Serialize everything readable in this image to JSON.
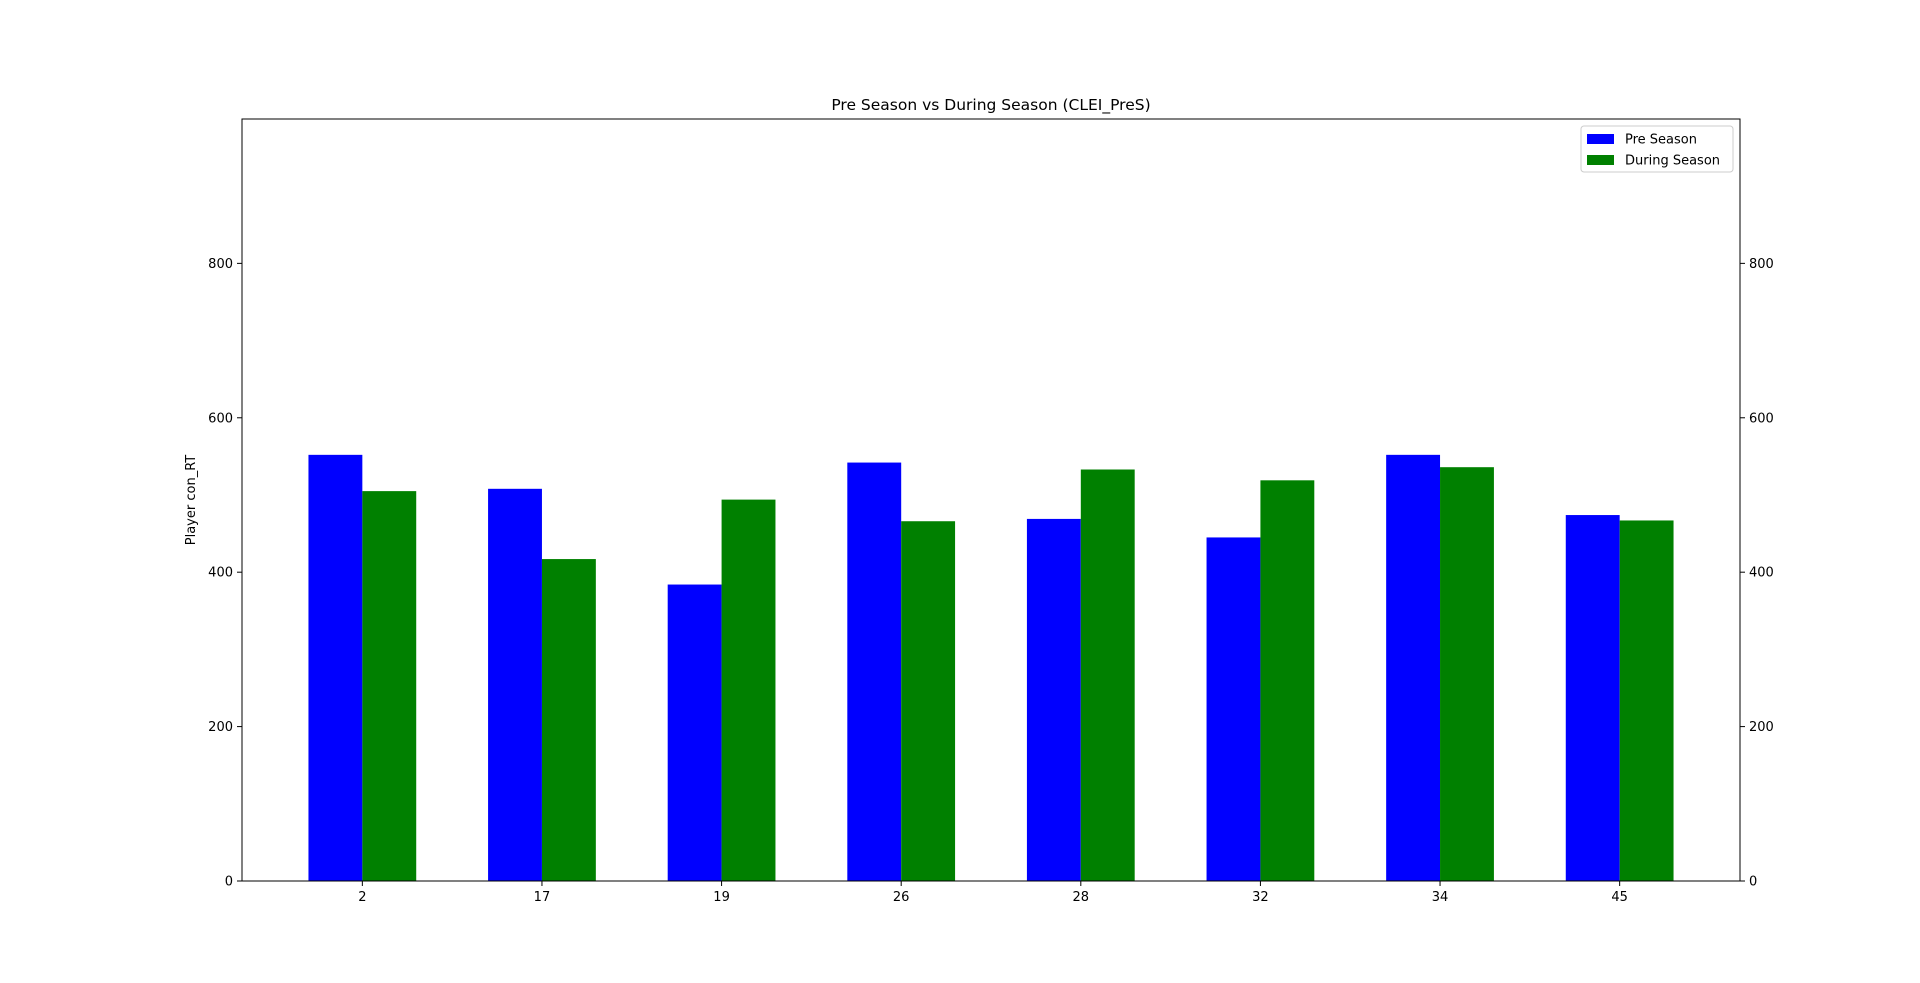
{
  "chart_data": {
    "type": "bar",
    "title": "Pre Season vs During Season (CLEI_PreS)",
    "xlabel": "",
    "ylabel": "Player con_RT",
    "categories": [
      "2",
      "17",
      "19",
      "26",
      "28",
      "32",
      "34",
      "45"
    ],
    "series": [
      {
        "name": "Pre Season",
        "color": "#0000ff",
        "values": [
          552,
          508,
          384,
          542,
          469,
          445,
          552,
          474
        ]
      },
      {
        "name": "During Season",
        "color": "#008000",
        "values": [
          505,
          417,
          494,
          466,
          533,
          519,
          536,
          467
        ]
      }
    ],
    "ylim": [
      0,
      987
    ],
    "yticks": [
      0,
      200,
      400,
      600,
      800
    ],
    "secondary_y_axis": true,
    "grid": false,
    "legend_position": "top-right"
  }
}
